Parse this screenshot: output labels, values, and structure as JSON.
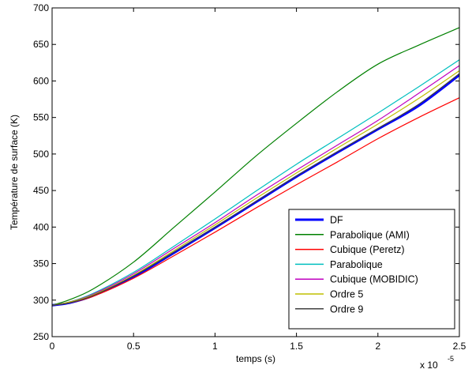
{
  "chart_data": {
    "type": "line",
    "title": "",
    "xlabel": "temps (s)",
    "ylabel": "Température de surface (K)",
    "x_multiplier_label": "x 10",
    "x_multiplier_exponent": "-5",
    "xlim": [
      0,
      2.5
    ],
    "ylim": [
      250,
      700
    ],
    "xticks": [
      "0",
      "0.5",
      "1",
      "1.5",
      "2",
      "2.5"
    ],
    "yticks": [
      "250",
      "300",
      "350",
      "400",
      "450",
      "500",
      "550",
      "600",
      "650",
      "700"
    ],
    "grid": false,
    "legend_position": "bottom-right",
    "series": [
      {
        "name": "DF",
        "color": "#0000ff",
        "linewidth": "thick",
        "x": [
          0,
          0.1,
          0.25,
          0.5,
          0.75,
          1.0,
          1.25,
          1.5,
          1.75,
          2.0,
          2.25,
          2.5
        ],
        "y": [
          293,
          296,
          306,
          332,
          365,
          399,
          434,
          469,
          502,
          534,
          566,
          608
        ]
      },
      {
        "name": "Parabolique (AMI)",
        "color": "#008000",
        "x": [
          0,
          0.1,
          0.25,
          0.5,
          0.75,
          1.0,
          1.25,
          1.5,
          1.75,
          2.0,
          2.25,
          2.5
        ],
        "y": [
          293,
          300,
          315,
          352,
          400,
          448,
          497,
          542,
          585,
          623,
          649,
          673
        ]
      },
      {
        "name": "Cubique (Peretz)",
        "color": "#ff0000",
        "x": [
          0,
          0.1,
          0.25,
          0.5,
          0.75,
          1.0,
          1.25,
          1.5,
          1.75,
          2.0,
          2.25,
          2.5
        ],
        "y": [
          293,
          296,
          305,
          330,
          361,
          393,
          426,
          458,
          489,
          521,
          550,
          577
        ]
      },
      {
        "name": "Parabolique",
        "color": "#00bfbf",
        "x": [
          0,
          0.1,
          0.25,
          0.5,
          0.75,
          1.0,
          1.25,
          1.5,
          1.75,
          2.0,
          2.25,
          2.5
        ],
        "y": [
          293,
          297,
          309,
          338,
          374,
          411,
          449,
          486,
          521,
          556,
          592,
          629
        ]
      },
      {
        "name": "Cubique (MOBIDIC)",
        "color": "#bf00bf",
        "x": [
          0,
          0.1,
          0.25,
          0.5,
          0.75,
          1.0,
          1.25,
          1.5,
          1.75,
          2.0,
          2.25,
          2.5
        ],
        "y": [
          293,
          297,
          308,
          336,
          371,
          406,
          443,
          478,
          512,
          546,
          583,
          621
        ]
      },
      {
        "name": "Ordre 5",
        "color": "#bfbf00",
        "x": [
          0,
          0.1,
          0.25,
          0.5,
          0.75,
          1.0,
          1.25,
          1.5,
          1.75,
          2.0,
          2.25,
          2.5
        ],
        "y": [
          293,
          297,
          307,
          334,
          368,
          403,
          439,
          474,
          508,
          541,
          576,
          614
        ]
      },
      {
        "name": "Ordre 9",
        "color": "#404040",
        "x": [
          0,
          0.1,
          0.25,
          0.5,
          0.75,
          1.0,
          1.25,
          1.5,
          1.75,
          2.0,
          2.25,
          2.5
        ],
        "y": [
          293,
          296,
          306,
          333,
          366,
          400,
          435,
          470,
          503,
          535,
          568,
          610
        ]
      }
    ]
  }
}
